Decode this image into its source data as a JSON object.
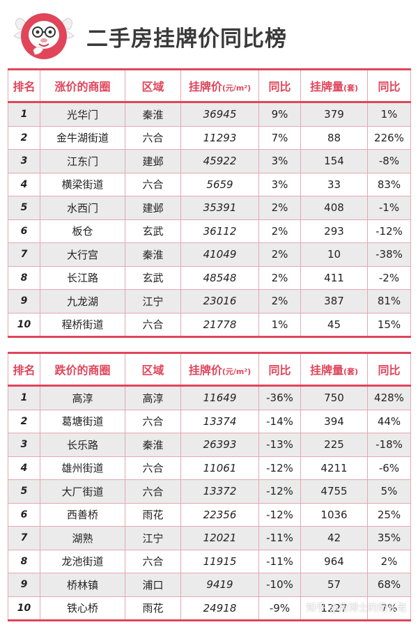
{
  "title": "二手房挂牌价同比榜",
  "colors": {
    "accent": "#e0455a",
    "row_alt": "#ebebeb",
    "grid": "#e3a8b0"
  },
  "rise_table": {
    "headers": {
      "rank": "排名",
      "area": "涨价的商圈",
      "district": "区域",
      "price": "挂牌价",
      "price_unit": "(元/m²)",
      "yoy": "同比",
      "listings": "挂牌量",
      "listings_unit": "(套)",
      "yoy2": "同比"
    },
    "rows": [
      [
        "1",
        "光华门",
        "秦淮",
        "36945",
        "9%",
        "379",
        "1%"
      ],
      [
        "2",
        "金牛湖街道",
        "六合",
        "11293",
        "7%",
        "88",
        "226%"
      ],
      [
        "3",
        "江东门",
        "建邺",
        "45922",
        "3%",
        "154",
        "-8%"
      ],
      [
        "4",
        "横梁街道",
        "六合",
        "5659",
        "3%",
        "33",
        "83%"
      ],
      [
        "5",
        "水西门",
        "建邺",
        "35391",
        "2%",
        "408",
        "-1%"
      ],
      [
        "6",
        "板仓",
        "玄武",
        "36112",
        "2%",
        "293",
        "-12%"
      ],
      [
        "7",
        "大行宫",
        "秦淮",
        "41049",
        "2%",
        "10",
        "-38%"
      ],
      [
        "8",
        "长江路",
        "玄武",
        "48548",
        "2%",
        "411",
        "-2%"
      ],
      [
        "9",
        "九龙湖",
        "江宁",
        "23016",
        "2%",
        "387",
        "81%"
      ],
      [
        "10",
        "程桥街道",
        "六合",
        "21778",
        "1%",
        "45",
        "15%"
      ]
    ]
  },
  "fall_table": {
    "headers": {
      "rank": "排名",
      "area": "跌价的商圈",
      "district": "区域",
      "price": "挂牌价",
      "price_unit": "(元/m²)",
      "yoy": "同比",
      "listings": "挂牌量",
      "listings_unit": "(套)",
      "yoy2": "同比"
    },
    "rows": [
      [
        "1",
        "高淳",
        "高淳",
        "11649",
        "-36%",
        "750",
        "428%"
      ],
      [
        "2",
        "葛塘街道",
        "六合",
        "13374",
        "-14%",
        "394",
        "44%"
      ],
      [
        "3",
        "长乐路",
        "秦淮",
        "26393",
        "-13%",
        "225",
        "-18%"
      ],
      [
        "4",
        "雄州街道",
        "六合",
        "11061",
        "-12%",
        "4211",
        "-6%"
      ],
      [
        "5",
        "大厂街道",
        "六合",
        "13372",
        "-12%",
        "4755",
        "5%"
      ],
      [
        "6",
        "西善桥",
        "雨花",
        "22356",
        "-12%",
        "1036",
        "25%"
      ],
      [
        "7",
        "湖熟",
        "江宁",
        "12021",
        "-11%",
        "42",
        "35%"
      ],
      [
        "8",
        "龙池街道",
        "六合",
        "11915",
        "-11%",
        "964",
        "2%"
      ],
      [
        "9",
        "桥林镇",
        "浦口",
        "9419",
        "-10%",
        "57",
        "68%"
      ],
      [
        "10",
        "铁心桥",
        "雨花",
        "24918",
        "-9%",
        "1227",
        "7%"
      ]
    ]
  },
  "watermark": "知乎 @宛博士的宛长老"
}
